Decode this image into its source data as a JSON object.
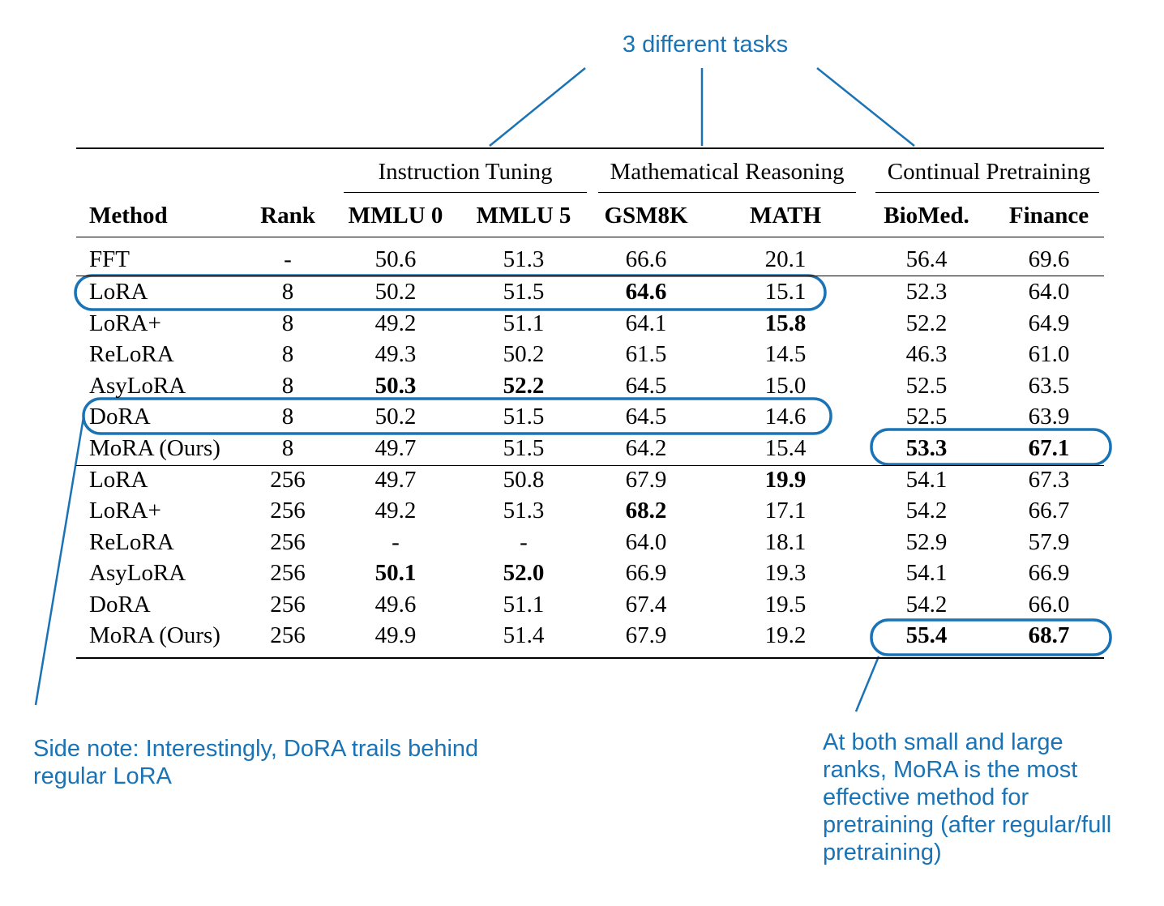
{
  "annotations": {
    "top_label": "3 different tasks",
    "side_note_line1": "Side note: Interestingly, DoRA trails behind",
    "side_note_line2": "regular LoRA",
    "right_note_lines": [
      "At both small and large",
      "ranks, MoRA is the most",
      "effective method for",
      "pretraining (after regular/full",
      "pretraining)"
    ],
    "accent_color": "#1a73b5"
  },
  "table": {
    "groups": [
      "Instruction Tuning",
      "Mathematical Reasoning",
      "Continual Pretraining"
    ],
    "headers": [
      "Method",
      "Rank",
      "MMLU 0",
      "MMLU 5",
      "GSM8K",
      "MATH",
      "BioMed.",
      "Finance"
    ],
    "rows": [
      {
        "method": "FFT",
        "rank": "-",
        "vals": [
          "50.6",
          "51.3",
          "66.6",
          "20.1",
          "56.4",
          "69.6"
        ],
        "bold": []
      },
      {
        "method": "LoRA",
        "rank": "8",
        "vals": [
          "50.2",
          "51.5",
          "64.6",
          "15.1",
          "52.3",
          "64.0"
        ],
        "bold": [
          2
        ]
      },
      {
        "method": "LoRA+",
        "rank": "8",
        "vals": [
          "49.2",
          "51.1",
          "64.1",
          "15.8",
          "52.2",
          "64.9"
        ],
        "bold": [
          3
        ]
      },
      {
        "method": "ReLoRA",
        "rank": "8",
        "vals": [
          "49.3",
          "50.2",
          "61.5",
          "14.5",
          "46.3",
          "61.0"
        ],
        "bold": []
      },
      {
        "method": "AsyLoRA",
        "rank": "8",
        "vals": [
          "50.3",
          "52.2",
          "64.5",
          "15.0",
          "52.5",
          "63.5"
        ],
        "bold": [
          0,
          1
        ]
      },
      {
        "method": "DoRA",
        "rank": "8",
        "vals": [
          "50.2",
          "51.5",
          "64.5",
          "14.6",
          "52.5",
          "63.9"
        ],
        "bold": []
      },
      {
        "method": "MoRA (Ours)",
        "rank": "8",
        "vals": [
          "49.7",
          "51.5",
          "64.2",
          "15.4",
          "53.3",
          "67.1"
        ],
        "bold": [
          4,
          5
        ]
      },
      {
        "method": "LoRA",
        "rank": "256",
        "vals": [
          "49.7",
          "50.8",
          "67.9",
          "19.9",
          "54.1",
          "67.3"
        ],
        "bold": [
          3
        ]
      },
      {
        "method": "LoRA+",
        "rank": "256",
        "vals": [
          "49.2",
          "51.3",
          "68.2",
          "17.1",
          "54.2",
          "66.7"
        ],
        "bold": [
          2
        ]
      },
      {
        "method": "ReLoRA",
        "rank": "256",
        "vals": [
          "-",
          "-",
          "64.0",
          "18.1",
          "52.9",
          "57.9"
        ],
        "bold": []
      },
      {
        "method": "AsyLoRA",
        "rank": "256",
        "vals": [
          "50.1",
          "52.0",
          "66.9",
          "19.3",
          "54.1",
          "66.9"
        ],
        "bold": [
          0,
          1
        ]
      },
      {
        "method": "DoRA",
        "rank": "256",
        "vals": [
          "49.6",
          "51.1",
          "67.4",
          "19.5",
          "54.2",
          "66.0"
        ],
        "bold": []
      },
      {
        "method": "MoRA (Ours)",
        "rank": "256",
        "vals": [
          "49.9",
          "51.4",
          "67.9",
          "19.2",
          "55.4",
          "68.7"
        ],
        "bold": [
          4,
          5
        ]
      }
    ]
  }
}
